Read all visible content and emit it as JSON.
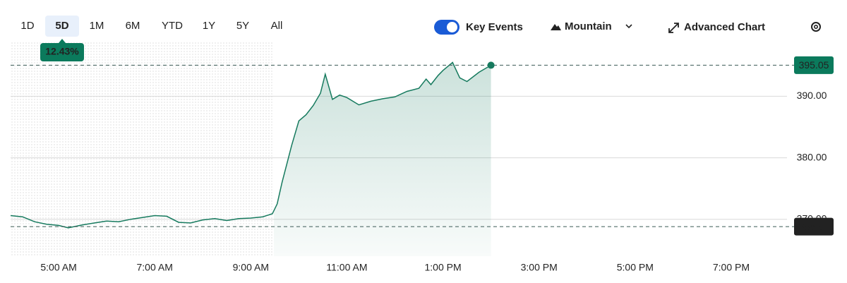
{
  "toolbar": {
    "ranges": [
      "1D",
      "5D",
      "1M",
      "6M",
      "YTD",
      "1Y",
      "5Y",
      "All"
    ],
    "selected_range": "5D",
    "change_badge": "12.43%",
    "key_events": "Key Events",
    "chart_style": "Mountain",
    "advanced_chart": "Advanced Chart"
  },
  "chart_data": {
    "type": "area",
    "color": "#167a5e",
    "x": [
      4.0,
      4.25,
      4.5,
      4.75,
      5.0,
      5.2,
      5.5,
      5.75,
      6.0,
      6.25,
      6.5,
      6.75,
      7.0,
      7.25,
      7.5,
      7.75,
      8.0,
      8.25,
      8.5,
      8.75,
      9.0,
      9.25,
      9.45,
      9.55,
      9.65,
      9.75,
      9.85,
      10.0,
      10.15,
      10.3,
      10.45,
      10.55,
      10.7,
      10.85,
      11.0,
      11.25,
      11.5,
      11.75,
      12.0,
      12.25,
      12.5,
      12.65,
      12.75,
      12.9,
      13.0,
      13.2,
      13.35,
      13.5,
      13.75,
      14.0
    ],
    "values": [
      370.6,
      370.4,
      369.6,
      369.2,
      369.0,
      368.6,
      369.1,
      369.4,
      369.7,
      369.6,
      370.0,
      370.3,
      370.6,
      370.5,
      369.5,
      369.4,
      369.9,
      370.1,
      369.8,
      370.1,
      370.2,
      370.4,
      370.9,
      372.5,
      376.0,
      379.0,
      382.0,
      386.0,
      387.0,
      388.5,
      390.5,
      393.6,
      389.5,
      390.2,
      389.8,
      388.6,
      389.2,
      389.6,
      389.9,
      390.8,
      391.3,
      392.8,
      391.9,
      393.4,
      394.2,
      395.5,
      393.0,
      392.4,
      393.9,
      395.05
    ],
    "xlim": [
      4,
      20
    ],
    "xticks": [
      {
        "value": 5,
        "label": "5:00 AM"
      },
      {
        "value": 7,
        "label": "7:00 AM"
      },
      {
        "value": 9,
        "label": "9:00 AM"
      },
      {
        "value": 11,
        "label": "11:00 AM"
      },
      {
        "value": 13,
        "label": "1:00 PM"
      },
      {
        "value": 15,
        "label": "3:00 PM"
      },
      {
        "value": 17,
        "label": "5:00 PM"
      },
      {
        "value": 19,
        "label": "7:00 PM"
      }
    ],
    "ylim": [
      364,
      399
    ],
    "yticks": [
      {
        "value": 370,
        "label": "370.00"
      },
      {
        "value": 380,
        "label": "380.00"
      },
      {
        "value": 390,
        "label": "390.00"
      }
    ],
    "grid": true,
    "last_price": 395.05,
    "previous_close": 368.81
  }
}
